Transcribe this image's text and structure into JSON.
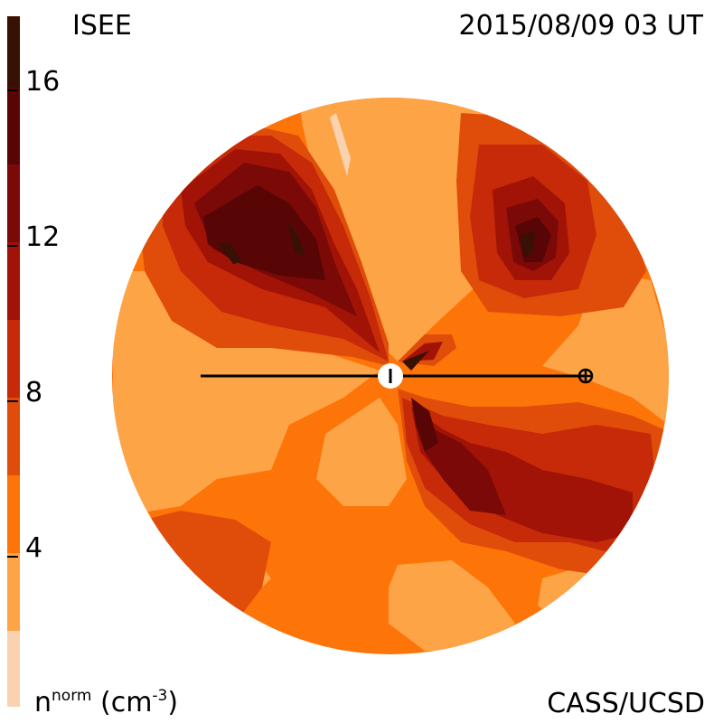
{
  "header": {
    "left": "ISEE",
    "right": "2015/08/09 03 UT"
  },
  "footer": {
    "credit": "CASS/UCSD"
  },
  "colorbar": {
    "unit_prefix": "n",
    "unit_sup": "norm",
    "unit_suffix": " (cm",
    "unit_exp": "-3",
    "unit_close": ")",
    "tick_labels": [
      "16",
      "12",
      "8",
      "4"
    ],
    "colors": [
      "#fbd2b0",
      "#fda447",
      "#fd7408",
      "#e04d0a",
      "#c62a08",
      "#a01306",
      "#7a0907",
      "#570505",
      "#381004"
    ]
  }
}
